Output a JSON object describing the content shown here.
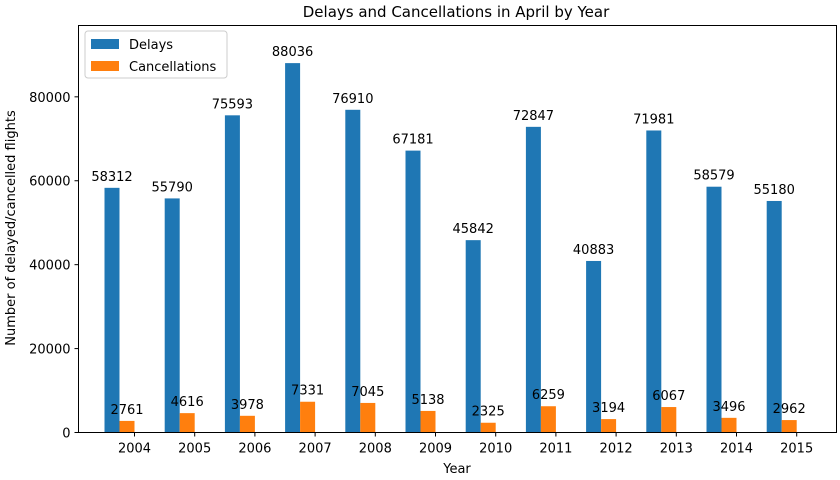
{
  "chart_data": {
    "type": "bar",
    "title": "Delays and Cancellations in April by Year",
    "xlabel": "Year",
    "ylabel": "Number of delayed/cancelled flights",
    "categories": [
      "2004",
      "2005",
      "2006",
      "2007",
      "2008",
      "2009",
      "2010",
      "2011",
      "2012",
      "2013",
      "2014",
      "2015"
    ],
    "series": [
      {
        "name": "Delays",
        "color": "#1f77b4",
        "values": [
          58312,
          55790,
          75593,
          88036,
          76910,
          67181,
          45842,
          72847,
          40883,
          71981,
          58579,
          55180
        ]
      },
      {
        "name": "Cancellations",
        "color": "#ff7f0e",
        "values": [
          2761,
          4616,
          3978,
          7331,
          7045,
          5138,
          2325,
          6259,
          3194,
          6067,
          3496,
          2962
        ]
      }
    ],
    "ylim": [
      0,
      97000
    ],
    "yticks": [
      0,
      20000,
      40000,
      60000,
      80000
    ],
    "grid": false,
    "legend_position": "top-left"
  }
}
